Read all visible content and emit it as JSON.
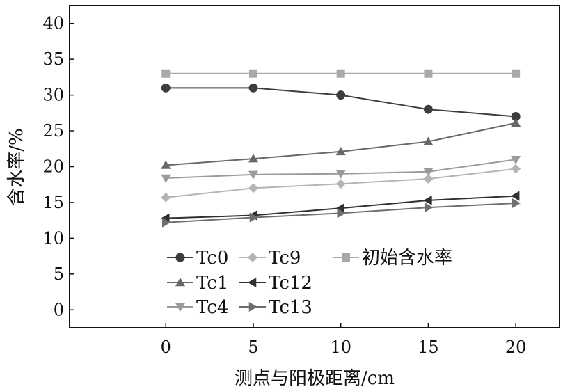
{
  "chart_data": {
    "type": "line",
    "title": "",
    "xlabel": "测点与阳极距离/cm",
    "ylabel": "含水率/%",
    "x": [
      0,
      5,
      10,
      15,
      20
    ],
    "xticks": [
      "0",
      "5",
      "10",
      "15",
      "20"
    ],
    "xlim": [
      -5.5,
      22.5
    ],
    "yticks": [
      "0",
      "5",
      "10",
      "15",
      "20",
      "25",
      "30",
      "35",
      "40"
    ],
    "ylim": [
      -2.5,
      42.5
    ],
    "grid": false,
    "legend_position": "bottom-left",
    "series": [
      {
        "name": "Tc0",
        "marker": "circle",
        "color": "#3d3d3d",
        "values": [
          31.0,
          31.0,
          30.0,
          28.0,
          27.0
        ]
      },
      {
        "name": "Tc1",
        "marker": "triangle-up",
        "color": "#686868",
        "values": [
          20.2,
          21.1,
          22.1,
          23.5,
          26.1
        ]
      },
      {
        "name": "Tc4",
        "marker": "triangle-down",
        "color": "#9a9a9a",
        "values": [
          18.4,
          18.9,
          19.0,
          19.3,
          21.0
        ]
      },
      {
        "name": "Tc9",
        "marker": "diamond",
        "color": "#b4b4b4",
        "values": [
          15.7,
          17.0,
          17.6,
          18.3,
          19.7
        ]
      },
      {
        "name": "Tc12",
        "marker": "triangle-left",
        "color": "#303030",
        "values": [
          12.8,
          13.2,
          14.2,
          15.3,
          15.9
        ]
      },
      {
        "name": "Tc13",
        "marker": "triangle-right",
        "color": "#6e6e6e",
        "values": [
          12.2,
          12.9,
          13.5,
          14.3,
          14.9
        ]
      },
      {
        "name": "初始含水率",
        "marker": "square",
        "color": "#a9a9a9",
        "values": [
          33.0,
          33.0,
          33.0,
          33.0,
          33.0
        ]
      }
    ],
    "legend_layout": [
      {
        "series": 0,
        "col": 0,
        "row": 0
      },
      {
        "series": 3,
        "col": 1,
        "row": 0
      },
      {
        "series": 6,
        "col": 2,
        "row": 0
      },
      {
        "series": 1,
        "col": 0,
        "row": 1
      },
      {
        "series": 4,
        "col": 1,
        "row": 1
      },
      {
        "series": 2,
        "col": 0,
        "row": 2
      },
      {
        "series": 5,
        "col": 1,
        "row": 2
      }
    ]
  }
}
